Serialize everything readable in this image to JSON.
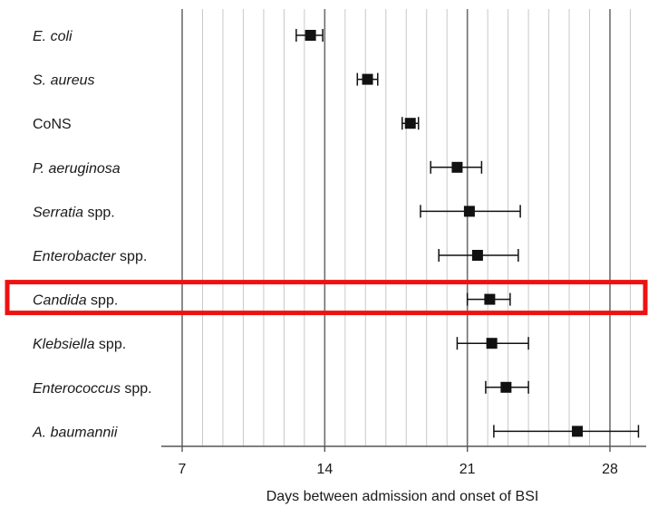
{
  "chart_data": {
    "type": "scatter",
    "xlabel": "Days between admission and onset of BSI",
    "ylabel": "",
    "xlim": [
      7,
      29.8
    ],
    "xticks": [
      "7",
      "14",
      "21",
      "28"
    ],
    "grid": true,
    "categories": [
      {
        "parts": [
          {
            "text": "E. coli",
            "italic": true
          }
        ],
        "value": 13.3,
        "low": 12.6,
        "high": 13.9
      },
      {
        "parts": [
          {
            "text": "S. aureus",
            "italic": true
          }
        ],
        "value": 16.1,
        "low": 15.6,
        "high": 16.6
      },
      {
        "parts": [
          {
            "text": "CoNS",
            "italic": false
          }
        ],
        "value": 18.2,
        "low": 17.8,
        "high": 18.6
      },
      {
        "parts": [
          {
            "text": "P. aeruginosa",
            "italic": true
          }
        ],
        "value": 20.5,
        "low": 19.2,
        "high": 21.7
      },
      {
        "parts": [
          {
            "text": "Serratia",
            "italic": true
          },
          {
            "text": " spp.",
            "italic": false
          }
        ],
        "value": 21.1,
        "low": 18.7,
        "high": 23.6
      },
      {
        "parts": [
          {
            "text": "Enterobacter",
            "italic": true
          },
          {
            "text": " spp.",
            "italic": false
          }
        ],
        "value": 21.5,
        "low": 19.6,
        "high": 23.5
      },
      {
        "parts": [
          {
            "text": "Candida",
            "italic": true
          },
          {
            "text": " spp.",
            "italic": false
          }
        ],
        "value": 22.1,
        "low": 21.0,
        "high": 23.1
      },
      {
        "parts": [
          {
            "text": "Klebsiella",
            "italic": true
          },
          {
            "text": " spp.",
            "italic": false
          }
        ],
        "value": 22.2,
        "low": 20.5,
        "high": 24.0
      },
      {
        "parts": [
          {
            "text": "Enterococcus",
            "italic": true
          },
          {
            "text": " spp.",
            "italic": false
          }
        ],
        "value": 22.9,
        "low": 21.9,
        "high": 24.0
      },
      {
        "parts": [
          {
            "text": "A. baumannii",
            "italic": true
          }
        ],
        "value": 26.4,
        "low": 22.3,
        "high": 29.4
      }
    ],
    "highlight": {
      "category": "Candida spp.",
      "color": "#ee1111"
    },
    "colors": {
      "marker": "#111111",
      "major_grid": "#6e6e6e",
      "minor_grid": "#c8c8c8"
    }
  }
}
